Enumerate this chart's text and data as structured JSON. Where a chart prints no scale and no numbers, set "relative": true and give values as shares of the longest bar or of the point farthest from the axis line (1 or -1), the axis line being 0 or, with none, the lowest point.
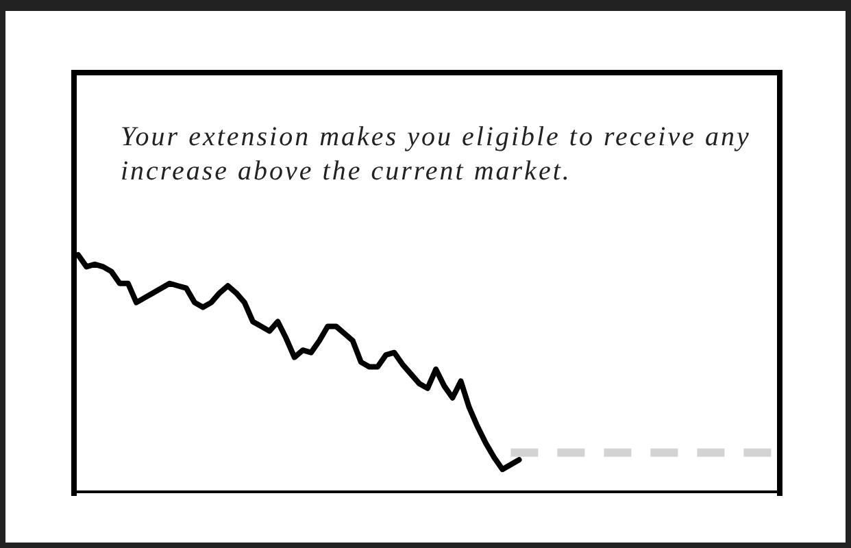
{
  "chart_data": {
    "type": "line",
    "title": "Your extension makes you eligible to receive any increase above the current market.",
    "relative": true,
    "legend": false,
    "marker": "none",
    "categories": [
      null,
      null,
      null,
      null,
      null,
      null,
      null,
      null,
      null,
      null,
      null,
      null,
      null,
      null,
      null,
      null,
      null,
      null,
      null,
      null,
      null,
      null,
      null,
      null,
      null,
      null,
      null,
      null,
      null,
      null,
      null,
      null,
      null,
      null,
      null,
      null,
      null,
      null,
      null,
      null,
      null,
      null,
      null,
      null,
      null,
      null,
      null,
      null,
      null,
      null,
      null,
      null,
      null,
      null,
      null,
      null,
      null,
      null,
      null,
      null,
      null,
      null,
      null,
      null,
      null,
      null,
      null,
      null,
      null,
      null,
      null,
      null,
      null,
      null,
      null,
      null,
      null,
      null,
      null,
      null,
      null,
      null,
      null,
      null,
      null
    ],
    "series": [
      {
        "color": "#000000",
        "line_style": "solid",
        "values": [
          1,
          0.95,
          0.96,
          0.95,
          0.93,
          0.88,
          0.88,
          0.8,
          0.82,
          0.84,
          0.86,
          0.88,
          0.87,
          0.86,
          0.8,
          0.78,
          0.8,
          0.84,
          0.87,
          0.84,
          0.8,
          0.72,
          0.7,
          0.68,
          0.72,
          0.65,
          0.57,
          0.6,
          0.59,
          0.64,
          0.7,
          0.7,
          0.67,
          0.64,
          0.55,
          0.53,
          0.53,
          0.58,
          0.59,
          0.54,
          0.5,
          0.46,
          0.44,
          0.52,
          0.45,
          0.4,
          0.47,
          0.36,
          0.28,
          0.21,
          0.15,
          0.1,
          0.12,
          0.14,
          null,
          null,
          null,
          null,
          null,
          null,
          null,
          null,
          null,
          null,
          null,
          null,
          null,
          null,
          null,
          null,
          null,
          null,
          null,
          null,
          null,
          null,
          null,
          null,
          null,
          null,
          null,
          null,
          null,
          null,
          null
        ]
      },
      {
        "color": "#d3d3d3",
        "line_style": "dashed",
        "values": [
          null,
          null,
          null,
          null,
          null,
          null,
          null,
          null,
          null,
          null,
          null,
          null,
          null,
          null,
          null,
          null,
          null,
          null,
          null,
          null,
          null,
          null,
          null,
          null,
          null,
          null,
          null,
          null,
          null,
          null,
          null,
          null,
          null,
          null,
          null,
          null,
          null,
          null,
          null,
          null,
          null,
          null,
          null,
          null,
          null,
          null,
          null,
          null,
          null,
          null,
          null,
          null,
          0.17,
          0.17,
          0.17,
          0.17,
          0.17,
          0.17,
          0.17,
          0.17,
          0.17,
          0.17,
          0.17,
          0.17,
          0.17,
          0.17,
          0.17,
          0.17,
          0.17,
          0.17,
          0.17,
          0.17,
          0.17,
          0.17,
          0.17,
          0.17,
          0.17,
          0.17,
          0.17,
          0.17,
          0.17,
          0.17,
          0.17,
          0.17,
          0.17
        ]
      }
    ]
  }
}
